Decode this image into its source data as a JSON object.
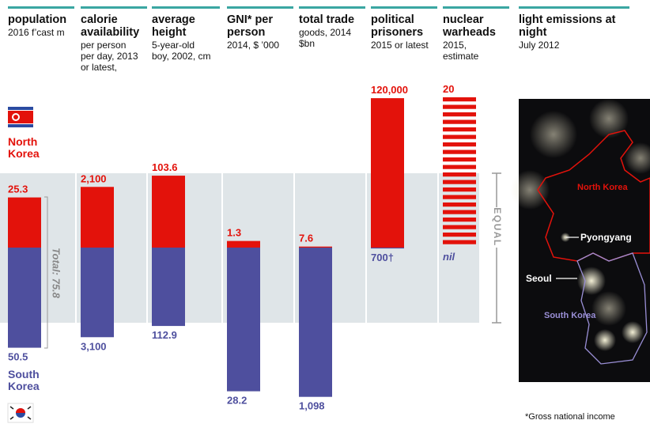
{
  "chart_data": {
    "type": "paired-bar",
    "columns": [
      {
        "title": "population",
        "subtitle": "2016 f’cast m"
      },
      {
        "title": "calorie availability",
        "subtitle": "per person per day, 2013 or latest,"
      },
      {
        "title": "average height",
        "subtitle": "5-year-old boy, 2002, cm"
      },
      {
        "title": "GNI* per person",
        "subtitle": "2014, $ ’000"
      },
      {
        "title": "total trade",
        "subtitle": "goods, 2014 $bn"
      },
      {
        "title": "political prisoners",
        "subtitle": "2015 or latest"
      },
      {
        "title": "nuclear warheads",
        "subtitle": "2015, estimate"
      }
    ],
    "series": [
      {
        "name": "North Korea",
        "color": "#e3120b",
        "values": [
          25.3,
          2100,
          103.6,
          1.3,
          7.6,
          120000,
          20
        ],
        "value_labels": [
          "25.3",
          "2,100",
          "103.6",
          "1.3",
          "7.6",
          "120,000",
          "20"
        ]
      },
      {
        "name": "South Korea",
        "color": "#4e4f9e",
        "values": [
          50.5,
          3100,
          112.9,
          28.2,
          1098,
          700,
          0
        ],
        "value_labels": [
          "50.5",
          "3,100",
          "112.9",
          "28.2",
          "1,098",
          "700†",
          "nil"
        ]
      }
    ],
    "annotations": {
      "total": "Total: 75.8",
      "equal": "EQUAL",
      "footnote": "*Gross national income"
    },
    "map": {
      "title": "light emissions at night",
      "subtitle": "July 2012",
      "labels": [
        "North Korea",
        "Pyongyang",
        "Seoul",
        "South Korea"
      ]
    }
  }
}
